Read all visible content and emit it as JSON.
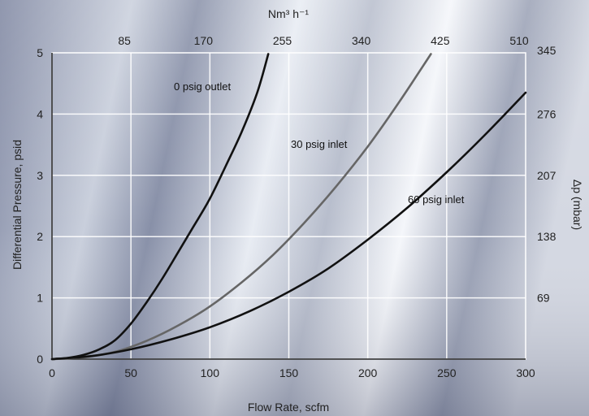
{
  "chart_data": {
    "type": "line",
    "title": "",
    "xlabel": "Flow Rate, scfm",
    "ylabel": "Differential Pressure, psid",
    "x2label": "Nm³ h⁻¹",
    "y2label": "Δp (mbar)",
    "xlim": [
      0,
      300
    ],
    "ylim": [
      0,
      5
    ],
    "grid": true,
    "x_ticks": [
      0,
      50,
      100,
      150,
      200,
      250,
      300
    ],
    "y_ticks": [
      0,
      1,
      2,
      3,
      4,
      5
    ],
    "x2_ticks": [
      {
        "value": 50,
        "label": "85"
      },
      {
        "value": 100,
        "label": "170"
      },
      {
        "value": 150,
        "label": "255"
      },
      {
        "value": 200,
        "label": "340"
      },
      {
        "value": 250,
        "label": "425"
      },
      {
        "value": 300,
        "label": "510"
      }
    ],
    "y2_ticks": [
      {
        "value": 1,
        "label": "69"
      },
      {
        "value": 2,
        "label": "138"
      },
      {
        "value": 3,
        "label": "207"
      },
      {
        "value": 4,
        "label": "276"
      },
      {
        "value": 5,
        "label": "345"
      }
    ],
    "series": [
      {
        "name": "0 psig outlet",
        "color": "#111111",
        "x": [
          0,
          10,
          20,
          30,
          40,
          50,
          60,
          70,
          80,
          90,
          100,
          110,
          120,
          130,
          137
        ],
        "y": [
          0,
          0.02,
          0.07,
          0.16,
          0.31,
          0.58,
          0.93,
          1.32,
          1.75,
          2.18,
          2.62,
          3.15,
          3.7,
          4.35,
          4.98
        ]
      },
      {
        "name": "30 psig inlet",
        "color": "#666666",
        "x": [
          0,
          20,
          40,
          60,
          80,
          100,
          120,
          140,
          160,
          180,
          200,
          220,
          240
        ],
        "y": [
          0,
          0.03,
          0.12,
          0.3,
          0.55,
          0.86,
          1.25,
          1.7,
          2.23,
          2.82,
          3.47,
          4.2,
          4.98
        ]
      },
      {
        "name": "60 psig inlet",
        "color": "#111111",
        "x": [
          0,
          25,
          50,
          75,
          100,
          125,
          150,
          175,
          200,
          225,
          250,
          275,
          300
        ],
        "y": [
          0,
          0.05,
          0.16,
          0.32,
          0.52,
          0.78,
          1.1,
          1.48,
          1.95,
          2.47,
          3.05,
          3.68,
          4.35
        ]
      }
    ]
  }
}
